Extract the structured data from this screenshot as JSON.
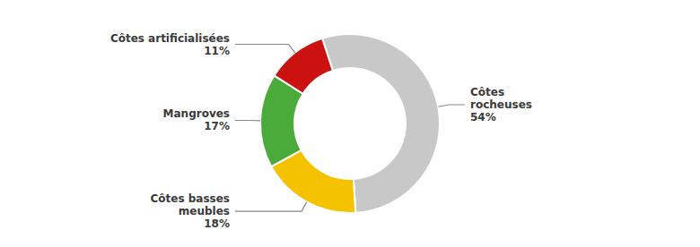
{
  "chart_data": {
    "type": "pie",
    "categories": [
      "Côtes\nrocheuses",
      "Côtes basses\nmeubles",
      "Mangroves",
      "Côtes artificialisées"
    ],
    "values": [
      54,
      18,
      17,
      11
    ],
    "value_labels": [
      "54%",
      "18%",
      "17%",
      "11%"
    ],
    "colors": [
      "#c8c8c8",
      "#f5c200",
      "#4aaa3a",
      "#cc1111"
    ]
  }
}
